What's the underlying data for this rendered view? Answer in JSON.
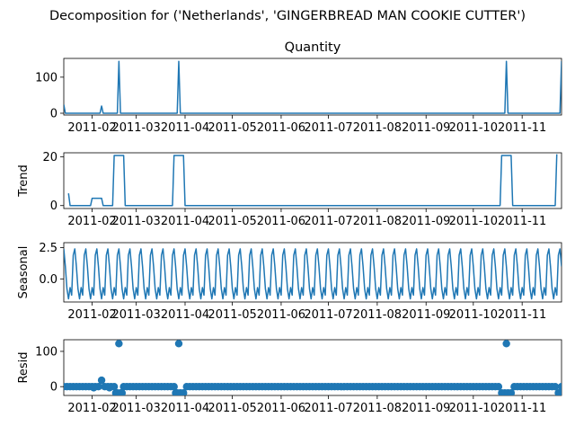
{
  "figure": {
    "suptitle": "Decomposition for ('Netherlands', 'GINGERBREAD MAN COOKIE CUTTER')",
    "line_color": "#1f77b4"
  },
  "chart_data": [
    {
      "type": "line",
      "title": "Quantity",
      "ylabel": "",
      "x_ticks": [
        "2011-02",
        "2011-03",
        "2011-04",
        "2011-05",
        "2011-06",
        "2011-07",
        "2011-08",
        "2011-09",
        "2011-10",
        "2011-11"
      ],
      "x_range": [
        "2011-01-14",
        "2011-11-26"
      ],
      "ylim": [
        -5,
        152
      ],
      "y_ticks": [
        "0",
        "100"
      ],
      "y_tick_values": [
        0,
        100
      ],
      "series": [
        {
          "points": [
            {
              "x": "2011-01-14",
              "y": 24
            },
            {
              "x": "2011-01-15",
              "y": 0
            },
            {
              "x": "2011-02-06",
              "y": 0
            },
            {
              "x": "2011-02-07",
              "y": 20
            },
            {
              "x": "2011-02-08",
              "y": 0
            },
            {
              "x": "2011-02-17",
              "y": 0
            },
            {
              "x": "2011-02-18",
              "y": 144
            },
            {
              "x": "2011-02-19",
              "y": 0
            },
            {
              "x": "2011-03-27",
              "y": 0
            },
            {
              "x": "2011-03-28",
              "y": 144
            },
            {
              "x": "2011-03-29",
              "y": 0
            },
            {
              "x": "2011-10-21",
              "y": 0
            },
            {
              "x": "2011-10-22",
              "y": 144
            },
            {
              "x": "2011-10-23",
              "y": 0
            },
            {
              "x": "2011-11-25",
              "y": 0
            },
            {
              "x": "2011-11-26",
              "y": 144
            }
          ]
        }
      ]
    },
    {
      "type": "line",
      "title": "",
      "ylabel": "Trend",
      "x_ticks": [
        "2011-02",
        "2011-03",
        "2011-04",
        "2011-05",
        "2011-06",
        "2011-07",
        "2011-08",
        "2011-09",
        "2011-10",
        "2011-11"
      ],
      "x_range": [
        "2011-01-14",
        "2011-11-26"
      ],
      "ylim": [
        -1.2,
        21.6
      ],
      "y_ticks": [
        "0",
        "20"
      ],
      "y_tick_values": [
        0,
        20
      ],
      "series": [
        {
          "points": [
            {
              "x": "2011-01-17",
              "y": 5
            },
            {
              "x": "2011-01-18",
              "y": 0
            },
            {
              "x": "2011-01-31",
              "y": 0
            },
            {
              "x": "2011-02-01",
              "y": 3
            },
            {
              "x": "2011-02-07",
              "y": 3
            },
            {
              "x": "2011-02-08",
              "y": 0
            },
            {
              "x": "2011-02-14",
              "y": 0
            },
            {
              "x": "2011-02-15",
              "y": 20.5
            },
            {
              "x": "2011-02-21",
              "y": 20.5
            },
            {
              "x": "2011-02-22",
              "y": 0
            },
            {
              "x": "2011-03-24",
              "y": 0
            },
            {
              "x": "2011-03-25",
              "y": 20.5
            },
            {
              "x": "2011-03-31",
              "y": 20.5
            },
            {
              "x": "2011-04-01",
              "y": 0
            },
            {
              "x": "2011-10-18",
              "y": 0
            },
            {
              "x": "2011-10-19",
              "y": 20.5
            },
            {
              "x": "2011-10-25",
              "y": 20.5
            },
            {
              "x": "2011-10-26",
              "y": 0
            },
            {
              "x": "2011-11-22",
              "y": 0
            },
            {
              "x": "2011-11-23",
              "y": 21
            }
          ]
        }
      ]
    },
    {
      "type": "line",
      "title": "",
      "ylabel": "Seasonal",
      "x_ticks": [
        "2011-02",
        "2011-03",
        "2011-04",
        "2011-05",
        "2011-06",
        "2011-07",
        "2011-08",
        "2011-09",
        "2011-10",
        "2011-11"
      ],
      "x_range": [
        "2011-01-14",
        "2011-11-26"
      ],
      "ylim": [
        -1.85,
        2.9
      ],
      "y_ticks": [
        "2.5",
        "0.0"
      ],
      "y_tick_values": [
        2.5,
        0.0
      ],
      "period_days": 7,
      "weekly_pattern": [
        2.4,
        1.0,
        -0.8,
        -1.6,
        -0.7,
        -1.3,
        1.9
      ],
      "series": [
        {
          "name": "seasonal",
          "start": "2011-01-14",
          "end": "2011-11-26"
        }
      ]
    },
    {
      "type": "scatter",
      "title": "",
      "ylabel": "Resid",
      "x_ticks": [
        "2011-02",
        "2011-03",
        "2011-04",
        "2011-05",
        "2011-06",
        "2011-07",
        "2011-08",
        "2011-09",
        "2011-10",
        "2011-11"
      ],
      "x_range": [
        "2011-01-14",
        "2011-11-26"
      ],
      "ylim": [
        -25,
        133
      ],
      "y_ticks": [
        "100",
        "0"
      ],
      "y_tick_values": [
        100,
        0
      ],
      "baseline_every_days": 2,
      "series": [
        {
          "points": [
            {
              "x": "2011-02-07",
              "y": 18
            },
            {
              "x": "2011-02-02",
              "y": -3
            },
            {
              "x": "2011-02-12",
              "y": -3
            },
            {
              "x": "2011-02-16",
              "y": -18
            },
            {
              "x": "2011-02-17",
              "y": -18
            },
            {
              "x": "2011-02-18",
              "y": 122
            },
            {
              "x": "2011-02-19",
              "y": -18
            },
            {
              "x": "2011-02-20",
              "y": -18
            },
            {
              "x": "2011-03-26",
              "y": -18
            },
            {
              "x": "2011-03-27",
              "y": -18
            },
            {
              "x": "2011-03-28",
              "y": 122
            },
            {
              "x": "2011-03-29",
              "y": -18
            },
            {
              "x": "2011-03-31",
              "y": -18
            },
            {
              "x": "2011-10-19",
              "y": -18
            },
            {
              "x": "2011-10-21",
              "y": -18
            },
            {
              "x": "2011-10-22",
              "y": 122
            },
            {
              "x": "2011-10-23",
              "y": -18
            },
            {
              "x": "2011-10-25",
              "y": -18
            },
            {
              "x": "2011-11-24",
              "y": -18
            },
            {
              "x": "2011-11-25",
              "y": -18
            }
          ]
        }
      ]
    }
  ]
}
